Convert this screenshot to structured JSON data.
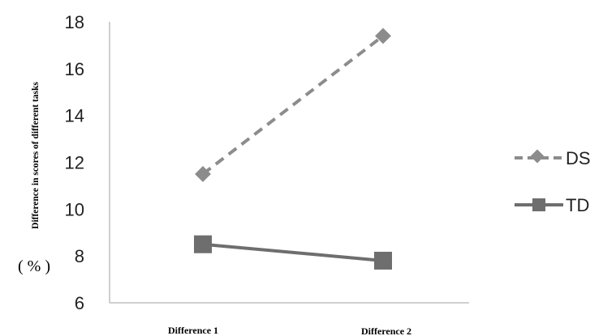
{
  "chart_data": {
    "type": "line",
    "title": "",
    "xlabel": "",
    "ylabel": "Difference in scores of different tasks",
    "yunit": "( % )",
    "categories": [
      "Difference 1",
      "Difference 2"
    ],
    "ylim": [
      6,
      18
    ],
    "yticks": [
      "6",
      "8",
      "10",
      "12",
      "14",
      "16",
      "18"
    ],
    "grid": false,
    "legend_position": "right",
    "series": [
      {
        "name": "DS",
        "values": [
          11.5,
          17.4
        ],
        "line_style": "dashed",
        "marker": "diamond",
        "color": "#8c8c8c"
      },
      {
        "name": "TD",
        "values": [
          8.5,
          7.8
        ],
        "line_style": "solid",
        "marker": "square",
        "color": "#6e6e6e"
      }
    ]
  }
}
